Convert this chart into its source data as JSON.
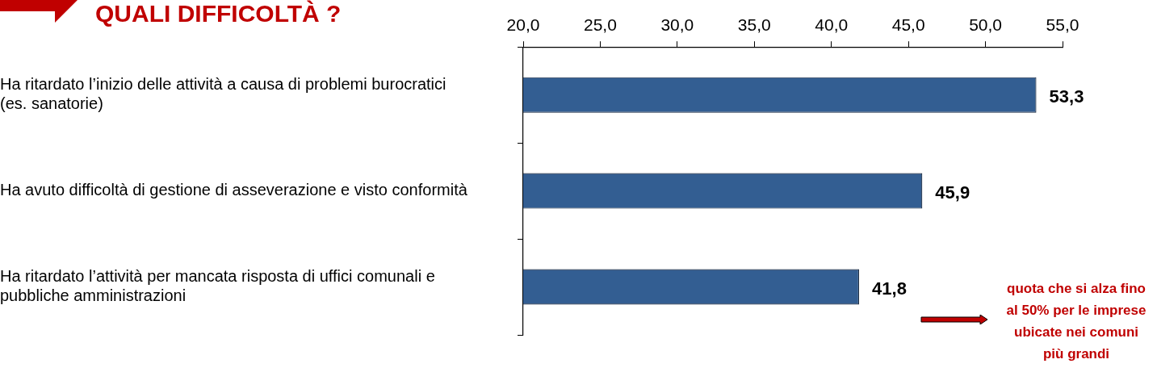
{
  "chart_data": {
    "type": "bar",
    "orientation": "horizontal",
    "title": "QUALI DIFFICOLTÀ ?",
    "categories": [
      "Ha ritardato l’inizio delle attività a causa di problemi burocratici (es. sanatorie)",
      "Ha avuto difficoltà di gestione di asseverazione e visto conformità",
      "Ha ritardato l’attività per mancata risposta di uffici comunali e pubbliche amministrazioni"
    ],
    "values": [
      53.3,
      45.9,
      41.8
    ],
    "color": "#335e92",
    "value_labels": [
      "53,3",
      "45,9",
      "41,8"
    ],
    "xlim": [
      20,
      55
    ],
    "xticks": [
      {
        "value": 20,
        "label": "20,0"
      },
      {
        "value": 25,
        "label": "25,0"
      },
      {
        "value": 30,
        "label": "30,0"
      },
      {
        "value": 35,
        "label": "35,0"
      },
      {
        "value": 40,
        "label": "40,0"
      },
      {
        "value": 45,
        "label": "45,0"
      },
      {
        "value": 50,
        "label": "50,0"
      },
      {
        "value": 55,
        "label": "55,0"
      }
    ],
    "grid": false,
    "legend": false,
    "annotations": [
      "quota che si alza fino al 50% per le imprese ubicate nei comuni più grandi"
    ]
  }
}
